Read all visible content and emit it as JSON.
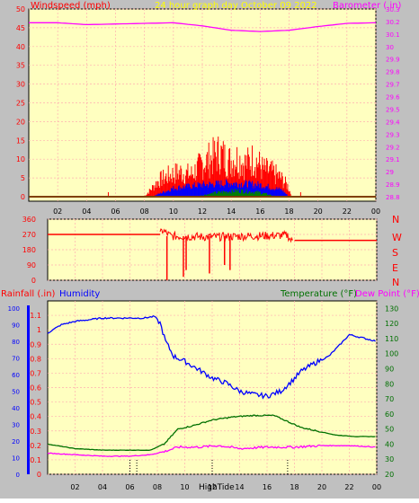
{
  "header": {
    "left_label": "Windspeed (mph)",
    "center_label": "24 hour graph day   October 09 2022",
    "right_label": "Barometer (.in)"
  },
  "colors": {
    "background": "#c0c0c0",
    "plot_bg": "#ffffc0",
    "grid": "#ffb0b0",
    "wind": "#ff0000",
    "wind_avg": "#0000ff",
    "wind_low": "#008000",
    "barometer": "#ff00ff",
    "direction": "#ff0000",
    "humidity": "#0000ff",
    "rainfall": "#ff0000",
    "temperature": "#007000",
    "dewpoint": "#ff00ff",
    "title": "#ffff00"
  },
  "direction_labels": [
    "N",
    "W",
    "S",
    "E",
    "N"
  ],
  "bottom": {
    "rainfall_label": "Rainfall (.in)",
    "humidity_label": "Humidity",
    "temperature_label": "Temperature (°F)",
    "dewpoint_label": "Dew Point (°F)",
    "hightide_label": "HighTide"
  },
  "chart_data": [
    {
      "id": "wind-barometer",
      "type": "bar",
      "title": "24 hour graph day   October 09 2022",
      "x_ticks": [
        "02",
        "04",
        "06",
        "08",
        "10",
        "12",
        "14",
        "16",
        "18",
        "20",
        "22",
        "00"
      ],
      "y_left": {
        "label": "Windspeed (mph)",
        "ticks": [
          "0",
          "5",
          "10",
          "15",
          "20",
          "25",
          "30",
          "35",
          "40",
          "45",
          "50"
        ],
        "range": [
          0,
          50
        ]
      },
      "y_right": {
        "label": "Barometer (.in)",
        "ticks": [
          "28.8",
          "28.9",
          "29",
          "29.1",
          "29.2",
          "29.3",
          "29.4",
          "29.5",
          "29.6",
          "29.7",
          "29.8",
          "29.9",
          "30",
          "30.1",
          "30.2",
          "30.3"
        ],
        "range": [
          28.8,
          30.3
        ]
      },
      "barometer": {
        "hours": [
          0,
          2,
          4,
          6,
          8,
          10,
          12,
          14,
          16,
          18,
          20,
          22,
          24
        ],
        "values": [
          30.19,
          30.19,
          30.175,
          30.18,
          30.185,
          30.19,
          30.165,
          30.13,
          30.12,
          30.13,
          30.16,
          30.185,
          30.19
        ]
      },
      "wind_gust_envelope": {
        "hours": [
          8.0,
          9.0,
          9.8,
          10.5,
          11.2,
          12.0,
          12.6,
          13.2,
          13.8,
          14.4,
          15.0,
          15.6,
          16.2,
          16.8,
          17.4,
          17.9,
          18.2
        ],
        "values": [
          0,
          6,
          8,
          9,
          8,
          12,
          14,
          16,
          13,
          14,
          12,
          14,
          10,
          9,
          7,
          4,
          0
        ]
      },
      "wind_avg_envelope": {
        "hours": [
          8.5,
          10,
          12,
          14,
          16,
          17.5,
          18
        ],
        "values": [
          0,
          2.5,
          3.5,
          4,
          3.5,
          2,
          0
        ]
      },
      "wind_low_envelope": {
        "hours": [
          11.5,
          13,
          14.5,
          16,
          17.2
        ],
        "values": [
          0,
          1.2,
          1.8,
          1.2,
          0
        ]
      }
    },
    {
      "id": "wind-direction",
      "type": "line",
      "y_ticks": [
        "360",
        "270",
        "180",
        "90",
        "0"
      ],
      "range": [
        0,
        360
      ],
      "hours": [
        0,
        8.2,
        8.4,
        8.6,
        9.0,
        12.0,
        14.5,
        17.5,
        17.8,
        18.0,
        24
      ],
      "values": [
        270,
        270,
        295,
        280,
        260,
        255,
        260,
        265,
        230,
        235,
        235
      ]
    },
    {
      "id": "humidity-temperature",
      "type": "line",
      "x_ticks": [
        "02",
        "04",
        "06",
        "08",
        "10",
        "12",
        "14",
        "16",
        "18",
        "20",
        "22",
        "00"
      ],
      "y_rainfall": {
        "label": "Rainfall (.in)",
        "ticks": [
          "0",
          "0.1",
          "0.2",
          "0.3",
          "0.4",
          "0.5",
          "0.6",
          "0.7",
          "0.8",
          "0.9",
          "1",
          "1.1"
        ],
        "range": [
          0,
          1.2
        ]
      },
      "y_humidity": {
        "label": "Humidity",
        "ticks": [
          "0",
          "10",
          "20",
          "30",
          "40",
          "50",
          "60",
          "70",
          "80",
          "90",
          "100"
        ],
        "range": [
          0,
          100
        ]
      },
      "y_temperature": {
        "label": "Temperature (°F)",
        "ticks": [
          "20",
          "30",
          "40",
          "50",
          "60",
          "70",
          "80",
          "90",
          "100",
          "110",
          "120",
          "130"
        ],
        "range": [
          20,
          135
        ]
      },
      "series": [
        {
          "name": "Humidity",
          "hours": [
            0,
            1,
            2,
            3,
            4,
            5,
            6,
            7,
            7.8,
            8.2,
            8.6,
            9.2,
            10,
            11,
            12,
            13,
            14,
            15,
            16,
            17,
            17.8,
            18.5,
            19.5,
            20.5,
            21.2,
            22,
            23,
            24
          ],
          "values": [
            85,
            90,
            92,
            93,
            94,
            94,
            94,
            94,
            95,
            91,
            80,
            71,
            68,
            63,
            58,
            55,
            50,
            48,
            47,
            50,
            56,
            62,
            67,
            71,
            77,
            84,
            82,
            80
          ]
        },
        {
          "name": "Temperature (°F)",
          "hours": [
            0,
            2,
            4,
            6,
            7.5,
            8.5,
            9.5,
            10.5,
            12,
            13.5,
            15,
            16.5,
            17.5,
            18.5,
            19.5,
            21,
            22.5,
            24
          ],
          "values": [
            40,
            37,
            36,
            36,
            36,
            40,
            50,
            52,
            56,
            58,
            59,
            59,
            55,
            51,
            49,
            46,
            45,
            45
          ]
        },
        {
          "name": "Dew Point (°F)",
          "hours": [
            0,
            2,
            4,
            6,
            7.5,
            8.5,
            9.5,
            11,
            12.5,
            14,
            16,
            18,
            20,
            22,
            24
          ],
          "values": [
            34,
            33,
            32,
            32,
            33,
            35,
            38,
            38,
            39,
            37,
            38,
            38,
            39,
            39,
            38
          ]
        }
      ],
      "tide_markers_hours": [
        6.0,
        6.5,
        12.0,
        17.5
      ]
    }
  ]
}
